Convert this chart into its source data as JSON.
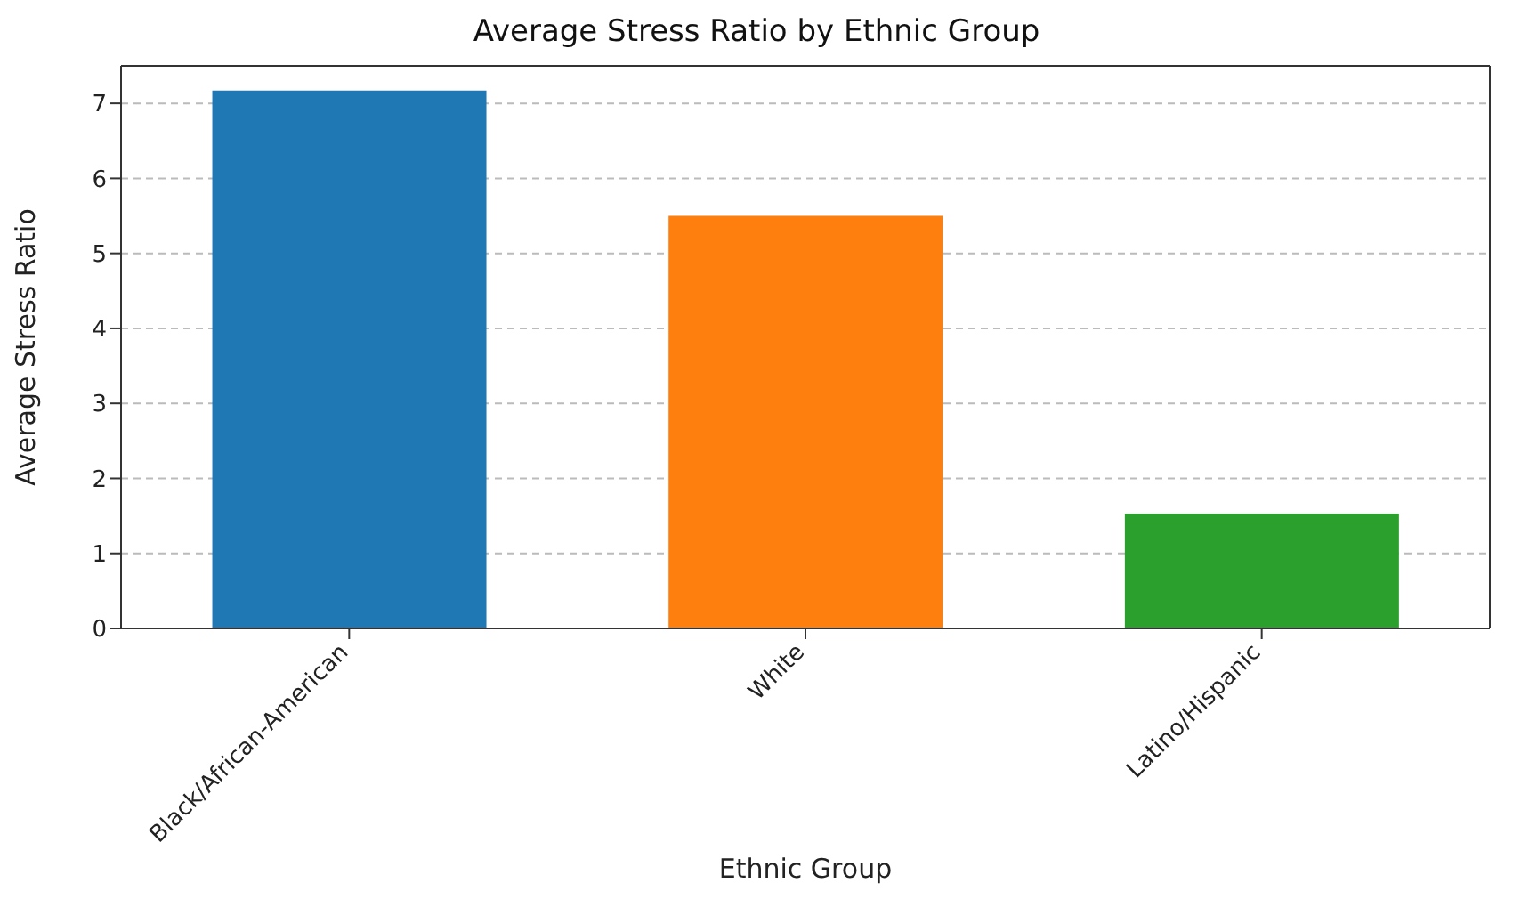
{
  "chart_data": {
    "type": "bar",
    "title": "Average Stress Ratio by Ethnic Group",
    "xlabel": "Ethnic Group",
    "ylabel": "Average Stress Ratio",
    "categories": [
      "Black/African-American",
      "White",
      "Latino/Hispanic"
    ],
    "values": [
      7.17,
      5.5,
      1.53
    ],
    "colors": [
      "#1f77b4",
      "#ff7f0e",
      "#2ca02c"
    ],
    "ylim": [
      0,
      7.5
    ],
    "yticks": [
      0,
      1,
      2,
      3,
      4,
      5,
      6,
      7
    ],
    "grid": "y"
  }
}
